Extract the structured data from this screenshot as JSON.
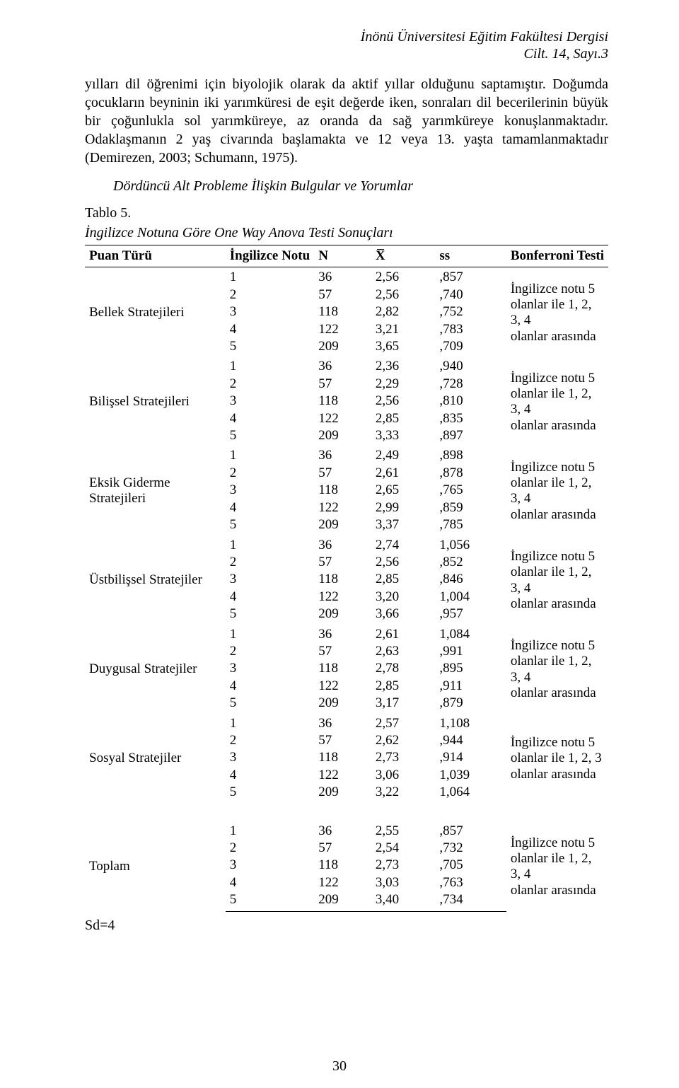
{
  "journal": {
    "line1": "İnönü Üniversitesi Eğitim Fakültesi Dergisi",
    "line2": "Cilt. 14, Sayı.3"
  },
  "paragraph": "yılları dil öğrenimi için biyolojik olarak da aktif yıllar olduğunu saptamıştır. Doğumda çocukların beyninin iki yarımküresi de eşit değerde iken, sonraları dil becerilerinin büyük bir çoğunlukla sol yarımküreye, az oranda da sağ yarımküreye konuşlanmaktadır. Odaklaşmanın 2 yaş civarında başlamakta ve 12 veya 13. yaşta tamamlanmaktadır (Demirezen, 2003; Schumann, 1975).",
  "subheading": "Dördüncü Alt Probleme İlişkin Bulgular ve Yorumlar",
  "table_title": "Tablo 5.",
  "table_caption": "İngilizce Notuna Göre One Way Anova Testi Sonuçları",
  "headers": {
    "puan": "Puan Türü",
    "notu": "İngilizce Notu",
    "n": "N",
    "x": "X",
    "ss": "ss",
    "bonf": "Bonferroni Testi"
  },
  "groups": [
    {
      "label": "Bellek Stratejileri",
      "bonf_lines": [
        "İngilizce notu 5",
        "olanlar ile 1, 2, 3, 4",
        "olanlar arasında"
      ],
      "rows": [
        {
          "notu": "1",
          "n": "36",
          "x": "2,56",
          "ss": ",857"
        },
        {
          "notu": "2",
          "n": "57",
          "x": "2,56",
          "ss": ",740"
        },
        {
          "notu": "3",
          "n": "118",
          "x": "2,82",
          "ss": ",752"
        },
        {
          "notu": "4",
          "n": "122",
          "x": "3,21",
          "ss": ",783"
        },
        {
          "notu": "5",
          "n": "209",
          "x": "3,65",
          "ss": ",709"
        }
      ]
    },
    {
      "label": "Bilişsel Stratejileri",
      "bonf_lines": [
        "İngilizce notu 5",
        "olanlar ile 1, 2, 3, 4",
        "olanlar arasında"
      ],
      "rows": [
        {
          "notu": "1",
          "n": "36",
          "x": "2,36",
          "ss": ",940"
        },
        {
          "notu": "2",
          "n": "57",
          "x": "2,29",
          "ss": ",728"
        },
        {
          "notu": "3",
          "n": "118",
          "x": "2,56",
          "ss": ",810"
        },
        {
          "notu": "4",
          "n": "122",
          "x": "2,85",
          "ss": ",835"
        },
        {
          "notu": "5",
          "n": "209",
          "x": "3,33",
          "ss": ",897"
        }
      ]
    },
    {
      "label": "Eksik Giderme\nStratejileri",
      "bonf_lines": [
        "İngilizce notu 5",
        "olanlar ile 1, 2, 3, 4",
        "olanlar arasında"
      ],
      "rows": [
        {
          "notu": "1",
          "n": "36",
          "x": "2,49",
          "ss": ",898"
        },
        {
          "notu": "2",
          "n": "57",
          "x": "2,61",
          "ss": ",878"
        },
        {
          "notu": "3",
          "n": "118",
          "x": "2,65",
          "ss": ",765"
        },
        {
          "notu": "4",
          "n": "122",
          "x": "2,99",
          "ss": ",859"
        },
        {
          "notu": "5",
          "n": "209",
          "x": "3,37",
          "ss": ",785"
        }
      ]
    },
    {
      "label": "Üstbilişsel Stratejiler",
      "bonf_lines": [
        "İngilizce notu 5",
        "olanlar ile 1, 2, 3, 4",
        "olanlar arasında"
      ],
      "rows": [
        {
          "notu": "1",
          "n": "36",
          "x": "2,74",
          "ss": "1,056"
        },
        {
          "notu": "2",
          "n": "57",
          "x": "2,56",
          "ss": ",852"
        },
        {
          "notu": "3",
          "n": "118",
          "x": "2,85",
          "ss": ",846"
        },
        {
          "notu": "4",
          "n": "122",
          "x": "3,20",
          "ss": "1,004"
        },
        {
          "notu": "5",
          "n": "209",
          "x": "3,66",
          "ss": ",957"
        }
      ]
    },
    {
      "label": "Duygusal Stratejiler",
      "bonf_lines": [
        "İngilizce notu 5",
        "olanlar ile 1, 2, 3, 4",
        "olanlar arasında"
      ],
      "rows": [
        {
          "notu": "1",
          "n": "36",
          "x": "2,61",
          "ss": "1,084"
        },
        {
          "notu": "2",
          "n": "57",
          "x": "2,63",
          "ss": ",991"
        },
        {
          "notu": "3",
          "n": "118",
          "x": "2,78",
          "ss": ",895"
        },
        {
          "notu": "4",
          "n": "122",
          "x": "2,85",
          "ss": ",911"
        },
        {
          "notu": "5",
          "n": "209",
          "x": "3,17",
          "ss": ",879"
        }
      ]
    },
    {
      "label": "Sosyal Stratejiler",
      "bonf_lines": [
        "İngilizce notu 5",
        "olanlar ile 1, 2, 3",
        "olanlar arasında"
      ],
      "rows": [
        {
          "notu": "1",
          "n": "36",
          "x": "2,57",
          "ss": "1,108"
        },
        {
          "notu": "2",
          "n": "57",
          "x": "2,62",
          "ss": ",944"
        },
        {
          "notu": "3",
          "n": "118",
          "x": "2,73",
          "ss": ",914"
        },
        {
          "notu": "4",
          "n": "122",
          "x": "3,06",
          "ss": "1,039"
        },
        {
          "notu": "5",
          "n": "209",
          "x": "3,22",
          "ss": "1,064"
        }
      ]
    },
    {
      "label": "Toplam",
      "bonf_lines": [
        "İngilizce notu 5",
        "olanlar ile 1, 2, 3, 4",
        "olanlar arasında"
      ],
      "gap_before": true,
      "rows": [
        {
          "notu": "1",
          "n": "36",
          "x": "2,55",
          "ss": ",857"
        },
        {
          "notu": "2",
          "n": "57",
          "x": "2,54",
          "ss": ",732"
        },
        {
          "notu": "3",
          "n": "118",
          "x": "2,73",
          "ss": ",705"
        },
        {
          "notu": "4",
          "n": "122",
          "x": "3,03",
          "ss": ",763"
        },
        {
          "notu": "5",
          "n": "209",
          "x": "3,40",
          "ss": ",734"
        }
      ]
    }
  ],
  "sd_label": "Sd=4",
  "page_number": "30",
  "style": {
    "font_family": "Times New Roman",
    "body_font_size_pt": 15,
    "table_font_size_pt": 14,
    "text_color": "#000000",
    "background_color": "#ffffff",
    "rule_color": "#000000"
  }
}
